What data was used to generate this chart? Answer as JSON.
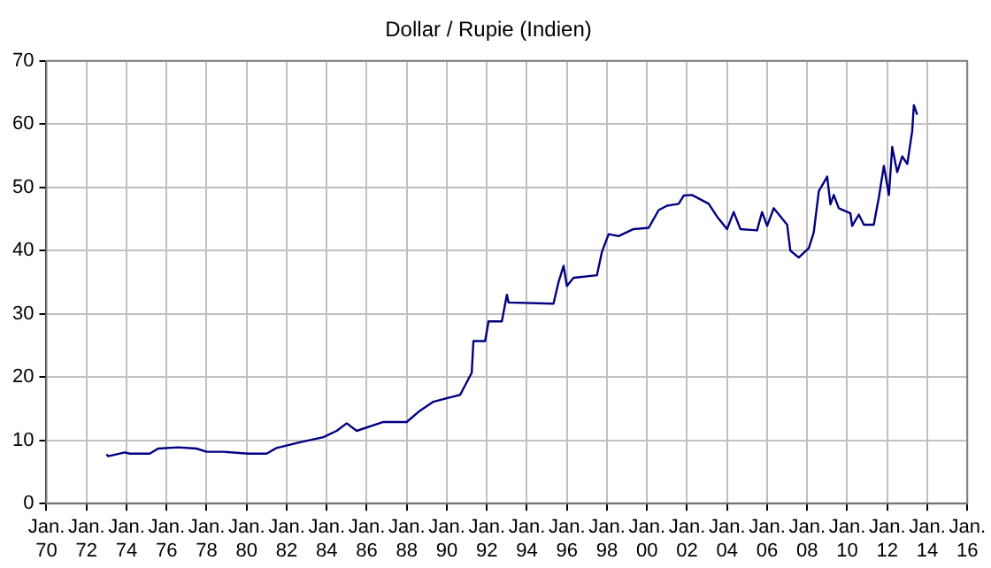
{
  "chart_data": {
    "type": "line",
    "title": "Dollar / Rupie (Indien)",
    "x": [
      "1973-01",
      "1973-02",
      "1973-12",
      "1974-03",
      "1975-03",
      "1975-08",
      "1976-08",
      "1977-07",
      "1978-01",
      "1978-11",
      "1980-02",
      "1981-01",
      "1981-07",
      "1982-09",
      "1983-11",
      "1984-07",
      "1985-01",
      "1985-07",
      "1986-11",
      "1988-01",
      "1988-08",
      "1989-05",
      "1990-09",
      "1991-04",
      "1991-05",
      "1991-12",
      "1992-02",
      "1992-10",
      "1993-01",
      "1993-02",
      "1995-05",
      "1995-08",
      "1995-11",
      "1996-01",
      "1996-05",
      "1997-07",
      "1997-10",
      "1998-02",
      "1998-08",
      "1999-05",
      "2000-02",
      "2000-08",
      "2001-01",
      "2001-08",
      "2001-11",
      "2002-04",
      "2003-02",
      "2003-07",
      "2004-01",
      "2004-05",
      "2004-09",
      "2005-07",
      "2005-10",
      "2006-01",
      "2006-05",
      "2007-01",
      "2007-03",
      "2007-08",
      "2008-02",
      "2008-05",
      "2008-08",
      "2009-01",
      "2009-03",
      "2009-05",
      "2009-08",
      "2010-03",
      "2010-04",
      "2010-08",
      "2010-11",
      "2011-05",
      "2011-08",
      "2011-11",
      "2012-02",
      "2012-04",
      "2012-07",
      "2012-10",
      "2013-01",
      "2013-04",
      "2013-05",
      "2013-07"
    ],
    "series": [
      {
        "color": "#000080",
        "values": [
          7.8,
          7.5,
          8.1,
          7.9,
          7.9,
          8.7,
          8.9,
          8.7,
          8.2,
          8.2,
          7.9,
          7.9,
          8.8,
          9.7,
          10.5,
          11.5,
          12.7,
          11.5,
          12.9,
          12.9,
          14.5,
          16.1,
          17.2,
          20.7,
          25.7,
          25.7,
          28.8,
          28.8,
          33.0,
          31.8,
          31.6,
          35.0,
          37.6,
          34.4,
          35.7,
          36.1,
          39.8,
          42.6,
          42.3,
          43.4,
          43.6,
          46.4,
          47.1,
          47.4,
          48.7,
          48.8,
          47.4,
          45.4,
          43.4,
          46.1,
          43.4,
          43.2,
          46.1,
          43.9,
          46.7,
          44.1,
          40.0,
          38.9,
          40.4,
          42.9,
          49.4,
          51.7,
          47.3,
          48.8,
          46.7,
          45.9,
          43.9,
          45.7,
          44.1,
          44.1,
          48.4,
          53.4,
          48.8,
          56.4,
          52.4,
          54.9,
          53.7,
          58.9,
          63.0,
          61.5
        ]
      }
    ],
    "xlim": [
      "1970-01",
      "2016-01"
    ],
    "xticks": [
      {
        "value": "1970-01",
        "label": "Jan. 70"
      },
      {
        "value": "1972-01",
        "label": "Jan. 72"
      },
      {
        "value": "1974-01",
        "label": "Jan. 74"
      },
      {
        "value": "1976-01",
        "label": "Jan. 76"
      },
      {
        "value": "1978-01",
        "label": "Jan. 78"
      },
      {
        "value": "1980-01",
        "label": "Jan. 80"
      },
      {
        "value": "1982-01",
        "label": "Jan. 82"
      },
      {
        "value": "1984-01",
        "label": "Jan. 84"
      },
      {
        "value": "1986-01",
        "label": "Jan. 86"
      },
      {
        "value": "1988-01",
        "label": "Jan. 88"
      },
      {
        "value": "1990-01",
        "label": "Jan. 90"
      },
      {
        "value": "1992-01",
        "label": "Jan. 92"
      },
      {
        "value": "1994-01",
        "label": "Jan. 94"
      },
      {
        "value": "1996-01",
        "label": "Jan. 96"
      },
      {
        "value": "1998-01",
        "label": "Jan. 98"
      },
      {
        "value": "2000-01",
        "label": "Jan. 00"
      },
      {
        "value": "2002-01",
        "label": "Jan. 02"
      },
      {
        "value": "2004-01",
        "label": "Jan. 04"
      },
      {
        "value": "2006-01",
        "label": "Jan. 06"
      },
      {
        "value": "2008-01",
        "label": "Jan. 08"
      },
      {
        "value": "2010-01",
        "label": "Jan. 10"
      },
      {
        "value": "2012-01",
        "label": "Jan. 12"
      },
      {
        "value": "2014-01",
        "label": "Jan. 14"
      },
      {
        "value": "2016-01",
        "label": "Jan. 16"
      }
    ],
    "ylim": [
      0,
      70
    ],
    "yticks": [
      0,
      10,
      20,
      30,
      40,
      50,
      60,
      70
    ],
    "grid": true,
    "legend": false,
    "marker": "none",
    "line_style": "solid"
  }
}
